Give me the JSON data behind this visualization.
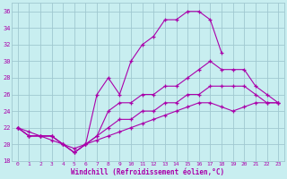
{
  "background_color": "#c8eef0",
  "grid_color": "#a0c8d0",
  "line_color": "#aa00aa",
  "xlabel": "Windchill (Refroidissement éolien,°C)",
  "xlim": [
    -0.5,
    23.5
  ],
  "ylim": [
    18,
    37
  ],
  "yticks": [
    18,
    20,
    22,
    24,
    26,
    28,
    30,
    32,
    34,
    36
  ],
  "xticks": [
    0,
    1,
    2,
    3,
    4,
    5,
    6,
    7,
    8,
    9,
    10,
    11,
    12,
    13,
    14,
    15,
    16,
    17,
    18,
    19,
    20,
    21,
    22,
    23
  ],
  "line_top_x": [
    0,
    1,
    2,
    3,
    4,
    5,
    6,
    7,
    8,
    9,
    10,
    11,
    12,
    13,
    14,
    15,
    16,
    17,
    18
  ],
  "line_top_y": [
    22,
    21,
    21,
    21,
    20,
    19,
    20,
    26,
    28,
    26,
    30,
    32,
    33,
    35,
    35,
    36,
    36,
    35,
    31
  ],
  "line_mid_x": [
    0,
    1,
    2,
    3,
    4,
    5,
    6,
    7,
    8,
    9,
    10,
    11,
    12,
    13,
    14,
    15,
    16,
    17,
    18,
    19,
    20,
    21,
    22,
    23
  ],
  "line_mid_y": [
    22,
    21,
    21,
    21,
    20,
    19,
    20,
    21,
    24,
    25,
    25,
    26,
    26,
    27,
    27,
    28,
    29,
    30,
    29,
    29,
    29,
    27,
    26,
    25
  ],
  "line_lower_x": [
    0,
    1,
    2,
    3,
    4,
    5,
    6,
    7,
    8,
    9,
    10,
    11,
    12,
    13,
    14,
    15,
    16,
    17,
    18,
    19,
    20,
    21,
    22,
    23
  ],
  "line_lower_y": [
    22,
    21,
    21,
    21,
    20,
    19,
    20,
    21,
    22,
    23,
    23,
    24,
    24,
    25,
    25,
    26,
    26,
    27,
    27,
    27,
    27,
    26,
    25,
    25
  ],
  "line_flat_x": [
    0,
    1,
    2,
    3,
    4,
    5,
    6,
    7,
    8,
    9,
    10,
    11,
    12,
    13,
    14,
    15,
    16,
    17,
    18,
    19,
    20,
    21,
    22,
    23
  ],
  "line_flat_y": [
    22,
    21.5,
    21,
    20.5,
    20,
    19.5,
    20,
    20.5,
    21,
    21.5,
    22,
    22.5,
    23,
    23.5,
    24,
    24.5,
    25,
    25,
    24.5,
    24,
    24.5,
    25,
    25,
    25
  ]
}
